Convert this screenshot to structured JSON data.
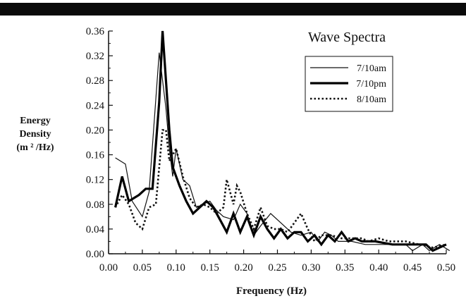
{
  "chart_data": {
    "type": "line",
    "title": "Wave Spectra",
    "xlabel": "Frequency  (Hz)",
    "ylabel_lines": [
      "Energy",
      "Density",
      "(m ² /Hz)"
    ],
    "xlim": [
      0,
      0.5
    ],
    "ylim": [
      0,
      0.36
    ],
    "x_ticks": [
      "0.00",
      "0.05",
      "0.10",
      "0.15",
      "0.20",
      "0.25",
      "0.30",
      "0.35",
      "0.40",
      "0.45",
      "0.50"
    ],
    "y_ticks": [
      "0.00",
      "0.04",
      "0.08",
      "0.12",
      "0.16",
      "0.20",
      "0.24",
      "0.28",
      "0.32",
      "0.36"
    ],
    "grid": false,
    "legend_position": "top-right",
    "series": [
      {
        "name": "7/10am",
        "style": "thin-solid",
        "x": [
          0.01,
          0.025,
          0.035,
          0.05,
          0.06,
          0.075,
          0.085,
          0.09,
          0.095,
          0.1,
          0.11,
          0.12,
          0.13,
          0.14,
          0.15,
          0.16,
          0.17,
          0.185,
          0.195,
          0.205,
          0.215,
          0.225,
          0.24,
          0.255,
          0.27,
          0.285,
          0.3,
          0.31,
          0.32,
          0.33,
          0.34,
          0.36,
          0.38,
          0.4,
          0.42,
          0.44,
          0.45,
          0.465,
          0.475,
          0.49,
          0.505
        ],
        "y": [
          0.155,
          0.145,
          0.085,
          0.06,
          0.1,
          0.325,
          0.235,
          0.17,
          0.125,
          0.17,
          0.12,
          0.11,
          0.075,
          0.08,
          0.085,
          0.07,
          0.06,
          0.055,
          0.08,
          0.065,
          0.03,
          0.045,
          0.065,
          0.05,
          0.035,
          0.03,
          0.035,
          0.02,
          0.035,
          0.03,
          0.02,
          0.02,
          0.015,
          0.015,
          0.015,
          0.015,
          0.005,
          0.015,
          0.005,
          0.015,
          0.005
        ]
      },
      {
        "name": "7/10pm",
        "style": "thick-solid",
        "x": [
          0.01,
          0.02,
          0.03,
          0.045,
          0.055,
          0.065,
          0.075,
          0.08,
          0.085,
          0.09,
          0.095,
          0.105,
          0.115,
          0.125,
          0.135,
          0.145,
          0.155,
          0.165,
          0.175,
          0.185,
          0.195,
          0.205,
          0.215,
          0.225,
          0.235,
          0.245,
          0.255,
          0.265,
          0.275,
          0.285,
          0.295,
          0.305,
          0.315,
          0.325,
          0.335,
          0.345,
          0.355,
          0.365,
          0.375,
          0.395,
          0.42,
          0.445,
          0.47,
          0.48,
          0.5
        ],
        "y": [
          0.075,
          0.125,
          0.085,
          0.095,
          0.105,
          0.105,
          0.245,
          0.36,
          0.28,
          0.2,
          0.14,
          0.11,
          0.085,
          0.065,
          0.075,
          0.085,
          0.075,
          0.055,
          0.035,
          0.065,
          0.035,
          0.06,
          0.03,
          0.06,
          0.04,
          0.025,
          0.04,
          0.025,
          0.035,
          0.035,
          0.02,
          0.03,
          0.015,
          0.03,
          0.02,
          0.035,
          0.02,
          0.025,
          0.02,
          0.02,
          0.015,
          0.015,
          0.015,
          0.005,
          0.015
        ]
      },
      {
        "name": "8/10am",
        "style": "dotted",
        "x": [
          0.01,
          0.02,
          0.03,
          0.04,
          0.05,
          0.06,
          0.07,
          0.08,
          0.085,
          0.09,
          0.1,
          0.11,
          0.12,
          0.13,
          0.14,
          0.15,
          0.16,
          0.17,
          0.175,
          0.185,
          0.19,
          0.195,
          0.205,
          0.215,
          0.225,
          0.235,
          0.245,
          0.255,
          0.265,
          0.275,
          0.285,
          0.295,
          0.305,
          0.315,
          0.33,
          0.345,
          0.36,
          0.375,
          0.385,
          0.4,
          0.415,
          0.44,
          0.46,
          0.48,
          0.5
        ],
        "y": [
          0.075,
          0.095,
          0.08,
          0.05,
          0.04,
          0.075,
          0.08,
          0.2,
          0.2,
          0.15,
          0.17,
          0.125,
          0.09,
          0.075,
          0.08,
          0.075,
          0.065,
          0.075,
          0.12,
          0.08,
          0.11,
          0.1,
          0.065,
          0.04,
          0.075,
          0.045,
          0.04,
          0.04,
          0.035,
          0.05,
          0.065,
          0.04,
          0.02,
          0.03,
          0.03,
          0.025,
          0.025,
          0.025,
          0.02,
          0.025,
          0.02,
          0.02,
          0.015,
          0.01,
          0.015
        ]
      }
    ]
  }
}
